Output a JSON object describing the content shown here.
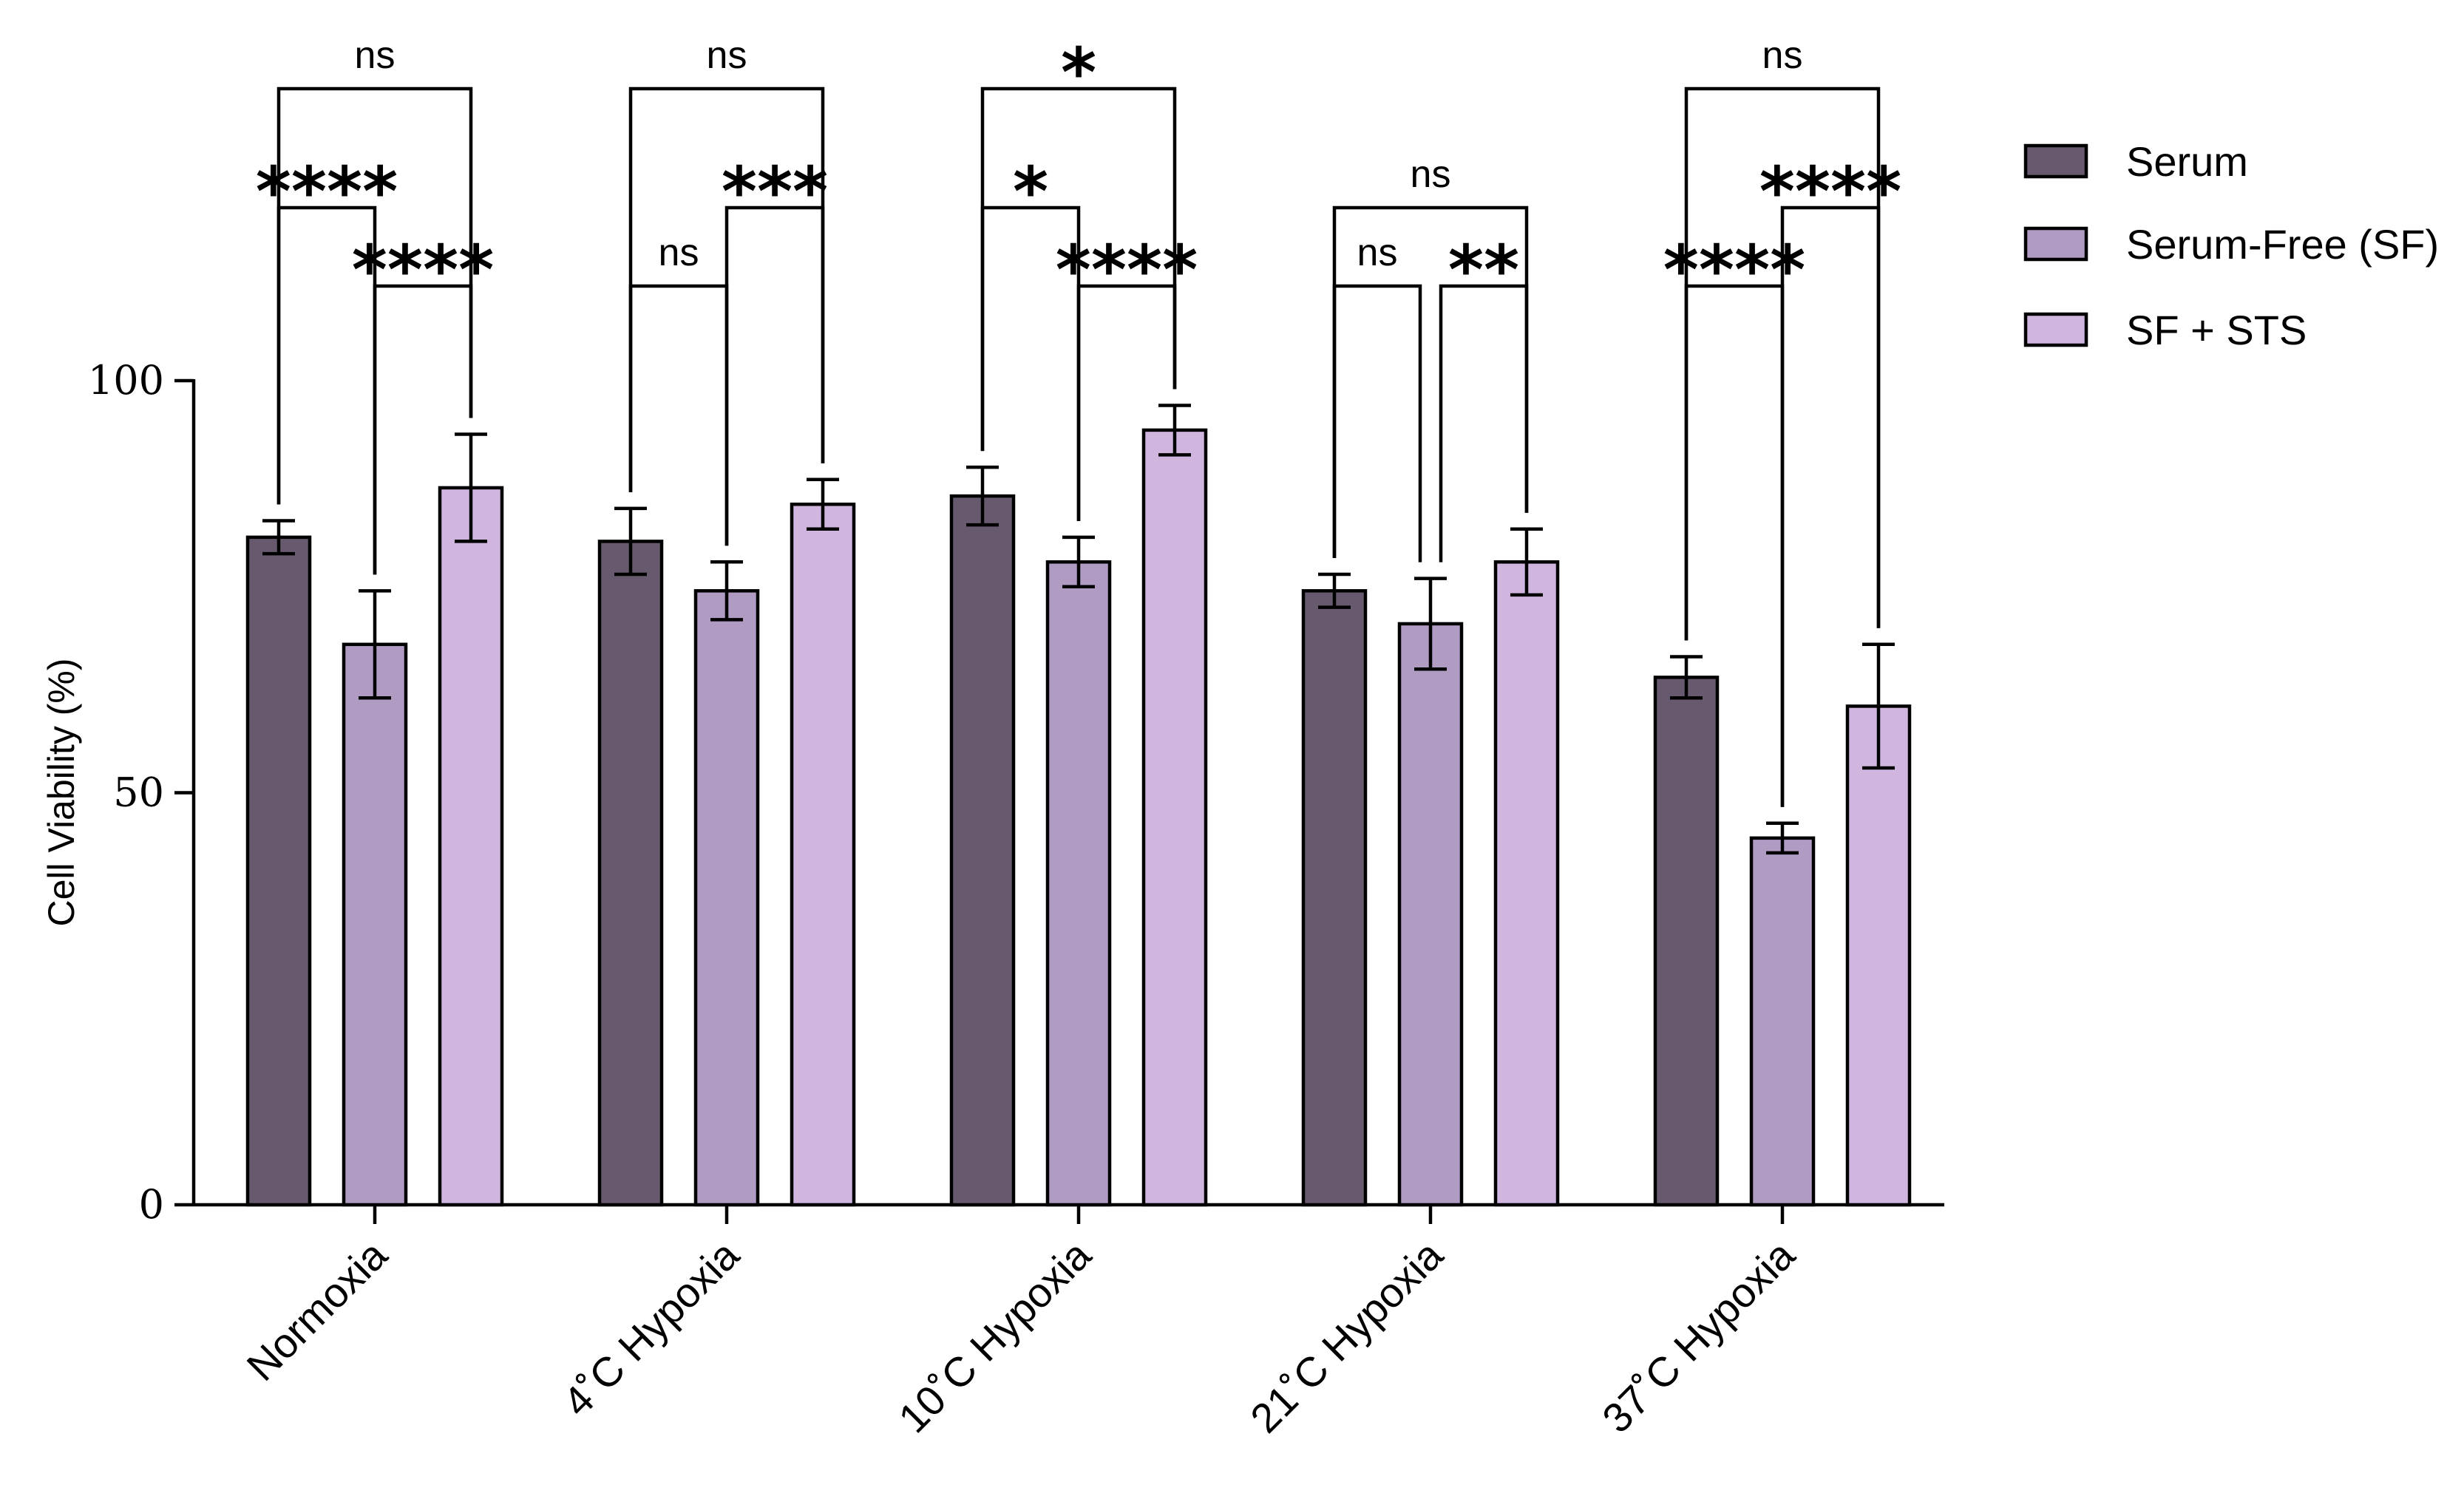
{
  "chart_data": {
    "type": "bar",
    "title": "",
    "xlabel": "",
    "ylabel": "Cell Viability (%)",
    "ylim": [
      0,
      100
    ],
    "yticks": [
      "0",
      "50",
      "100"
    ],
    "grid": false,
    "legend_position": "top-right",
    "categories": [
      "Normoxia",
      "4˚C Hypoxia",
      "10˚C Hypoxia",
      "21˚C Hypoxia",
      "37˚C Hypoxia"
    ],
    "series": [
      {
        "name": "Serum",
        "color": "#675a6e",
        "values": [
          81,
          80.5,
          86,
          74.5,
          64
        ],
        "errors": [
          2,
          4,
          3.5,
          2,
          2.5
        ]
      },
      {
        "name": "Serum-Free (SF)",
        "color": "#b09bc2",
        "values": [
          68,
          74.5,
          78,
          70.5,
          44.5
        ],
        "errors": [
          6.5,
          3.5,
          3,
          5.5,
          1.8
        ]
      },
      {
        "name": "SF + STS",
        "color": "#d0b6df",
        "values": [
          87,
          85,
          94,
          78,
          60.5
        ],
        "errors": [
          6.5,
          3,
          3,
          4,
          7.5
        ]
      }
    ],
    "annotations": [
      {
        "group": 0,
        "from": 0,
        "to": 1,
        "label": "****",
        "level": 2
      },
      {
        "group": 0,
        "from": 1,
        "to": 2,
        "label": "****",
        "level": 1
      },
      {
        "group": 0,
        "from": 0,
        "to": 2,
        "label": "ns",
        "level": 3
      },
      {
        "group": 1,
        "from": 0,
        "to": 1,
        "label": "ns",
        "level": 1
      },
      {
        "group": 1,
        "from": 1,
        "to": 2,
        "label": "***",
        "level": 2
      },
      {
        "group": 1,
        "from": 0,
        "to": 2,
        "label": "ns",
        "level": 3
      },
      {
        "group": 2,
        "from": 0,
        "to": 1,
        "label": "*",
        "level": 2
      },
      {
        "group": 2,
        "from": 1,
        "to": 2,
        "label": "****",
        "level": 1
      },
      {
        "group": 2,
        "from": 0,
        "to": 2,
        "label": "*",
        "level": 3
      },
      {
        "group": 3,
        "from": 0,
        "to": 1,
        "label": "ns",
        "level": 1
      },
      {
        "group": 3,
        "from": 1,
        "to": 2,
        "label": "**",
        "level": 1
      },
      {
        "group": 3,
        "from": 0,
        "to": 2,
        "label": "ns",
        "level": 2
      },
      {
        "group": 4,
        "from": 0,
        "to": 1,
        "label": "****",
        "level": 1
      },
      {
        "group": 4,
        "from": 1,
        "to": 2,
        "label": "****",
        "level": 2
      },
      {
        "group": 4,
        "from": 0,
        "to": 2,
        "label": "ns",
        "level": 3
      }
    ]
  }
}
